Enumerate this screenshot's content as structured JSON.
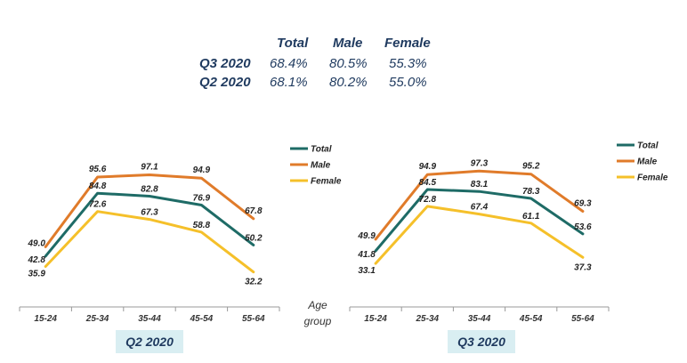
{
  "summary": {
    "headers": [
      "Total",
      "Male",
      "Female"
    ],
    "rows": [
      {
        "label": "Q3 2020",
        "values": [
          "68.4%",
          "80.5%",
          "55.3%"
        ]
      },
      {
        "label": "Q2 2020",
        "values": [
          "68.1%",
          "80.2%",
          "55.0%"
        ]
      }
    ]
  },
  "age_axis_label": "Age group",
  "colors": {
    "Total": "#1e6b66",
    "Male": "#e07b2a",
    "Female": "#f5c02a"
  },
  "chart_data": [
    {
      "type": "line",
      "title": "Q2 2020",
      "categories": [
        "15-24",
        "25-34",
        "35-44",
        "45-54",
        "55-64"
      ],
      "series": [
        {
          "name": "Total",
          "values": [
            42.8,
            84.8,
            82.8,
            76.9,
            50.2
          ]
        },
        {
          "name": "Male",
          "values": [
            49.0,
            95.6,
            97.1,
            94.9,
            67.8
          ]
        },
        {
          "name": "Female",
          "values": [
            35.9,
            72.6,
            67.3,
            58.8,
            32.2
          ]
        }
      ],
      "legend": "top-right",
      "grid": false
    },
    {
      "type": "line",
      "title": "Q3 2020",
      "categories": [
        "15-24",
        "25-34",
        "35-44",
        "45-54",
        "55-64"
      ],
      "series": [
        {
          "name": "Total",
          "values": [
            41.8,
            84.5,
            83.1,
            78.3,
            53.6
          ]
        },
        {
          "name": "Male",
          "values": [
            49.9,
            94.9,
            97.3,
            95.2,
            69.3
          ]
        },
        {
          "name": "Female",
          "values": [
            33.1,
            72.8,
            67.4,
            61.1,
            37.3
          ]
        }
      ],
      "legend": "top-right",
      "grid": false
    }
  ]
}
